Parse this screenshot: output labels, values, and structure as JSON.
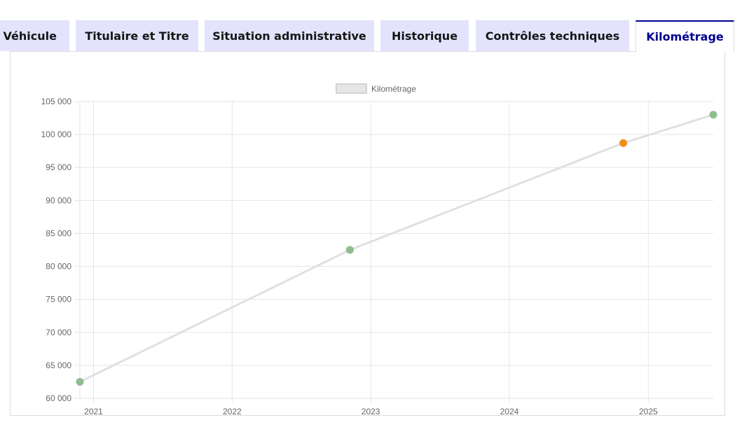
{
  "tabs": [
    {
      "label": "Véhicule",
      "active": false
    },
    {
      "label": "Titulaire et Titre",
      "active": false
    },
    {
      "label": "Situation administrative",
      "active": false
    },
    {
      "label": "Historique",
      "active": false
    },
    {
      "label": "Contrôles techniques",
      "active": false
    },
    {
      "label": "Kilométrage",
      "active": true
    }
  ],
  "colors": {
    "tab_bg": "#e3e3fd",
    "tab_active_text": "#000091",
    "line": "#e0e0e0",
    "point_ok": "#8fbc8f",
    "point_warning": "#f28c18"
  },
  "chart_data": {
    "type": "line",
    "legend": {
      "label": "Kilométrage",
      "position": "top"
    },
    "x_ticks": [
      "2021",
      "2022",
      "2023",
      "2024",
      "2025"
    ],
    "y_ticks": [
      "60 000",
      "65 000",
      "70 000",
      "75 000",
      "80 000",
      "85 000",
      "90 000",
      "95 000",
      "100 000",
      "105 000"
    ],
    "ylim": [
      60000,
      105000
    ],
    "xlim": [
      "2020-11-26",
      "2025-06-21"
    ],
    "grid": true,
    "series": [
      {
        "name": "Kilométrage",
        "points": [
          {
            "date": "2020-11-26",
            "km": 62500,
            "status": "ok"
          },
          {
            "date": "2022-11-07",
            "km": 82500,
            "status": "ok"
          },
          {
            "date": "2024-10-27",
            "km": 98700,
            "status": "warning"
          },
          {
            "date": "2025-06-21",
            "km": 103000,
            "status": "ok"
          }
        ]
      }
    ]
  }
}
